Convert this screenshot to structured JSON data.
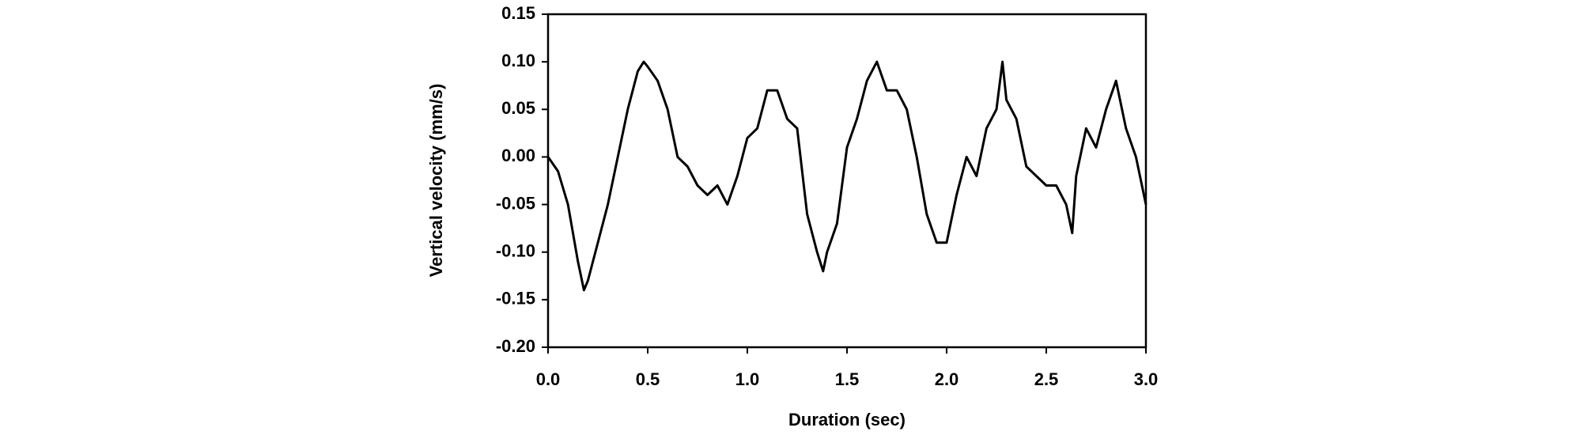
{
  "chart_data": {
    "type": "line",
    "xlabel": "Duration (sec)",
    "ylabel": "Vertical velocity (mm/s)",
    "x": [
      0,
      0.05,
      0.1,
      0.15,
      0.18,
      0.2,
      0.25,
      0.3,
      0.35,
      0.4,
      0.45,
      0.48,
      0.5,
      0.55,
      0.6,
      0.65,
      0.7,
      0.75,
      0.8,
      0.85,
      0.9,
      0.95,
      1.0,
      1.05,
      1.1,
      1.15,
      1.2,
      1.25,
      1.3,
      1.35,
      1.38,
      1.4,
      1.45,
      1.5,
      1.55,
      1.6,
      1.65,
      1.7,
      1.75,
      1.8,
      1.85,
      1.9,
      1.95,
      2.0,
      2.05,
      2.1,
      2.15,
      2.2,
      2.25,
      2.28,
      2.3,
      2.35,
      2.4,
      2.45,
      2.5,
      2.55,
      2.6,
      2.63,
      2.65,
      2.7,
      2.75,
      2.8,
      2.85,
      2.9,
      2.95,
      3.0
    ],
    "series": [
      {
        "name": "Vertical velocity",
        "color": "#000000",
        "values": [
          0.0,
          -0.015,
          -0.05,
          -0.11,
          -0.14,
          -0.13,
          -0.09,
          -0.05,
          0.0,
          0.05,
          0.09,
          0.1,
          0.095,
          0.08,
          0.05,
          0.0,
          -0.01,
          -0.03,
          -0.04,
          -0.03,
          -0.05,
          -0.02,
          0.02,
          0.03,
          0.07,
          0.07,
          0.04,
          0.03,
          -0.06,
          -0.1,
          -0.12,
          -0.1,
          -0.07,
          0.01,
          0.04,
          0.08,
          0.1,
          0.07,
          0.07,
          0.05,
          0.0,
          -0.06,
          -0.09,
          -0.09,
          -0.04,
          0.0,
          -0.02,
          0.03,
          0.05,
          0.1,
          0.06,
          0.04,
          -0.01,
          -0.02,
          -0.03,
          -0.03,
          -0.05,
          -0.08,
          -0.02,
          0.03,
          0.01,
          0.05,
          0.08,
          0.03,
          0.0,
          -0.05
        ]
      }
    ],
    "xlim": [
      0,
      3.0
    ],
    "xticks": [
      {
        "value": 0,
        "label": "0.0"
      },
      0.5,
      {
        "value": 1,
        "label": "1.0"
      },
      1.5,
      {
        "value": 2,
        "label": "2.0"
      },
      2.5,
      {
        "value": 3,
        "label": "3.0"
      }
    ],
    "ylim": [
      -0.2,
      0.15
    ],
    "yticks": [
      {
        "value": -0.2,
        "label": "-0.20"
      },
      -0.15,
      {
        "value": -0.1,
        "label": "-0.10"
      },
      -0.05,
      {
        "value": 0,
        "label": "0.00"
      },
      0.05,
      {
        "value": 0.1,
        "label": "0.10"
      },
      0.15
    ],
    "grid": false
  }
}
